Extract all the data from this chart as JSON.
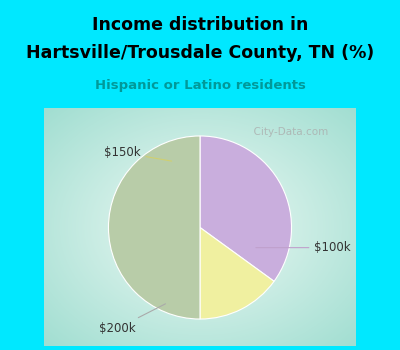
{
  "title_line1": "Income distribution in",
  "title_line2": "Hartsville/Trousdale County, TN (%)",
  "subtitle": "Hispanic or Latino residents",
  "slices": [
    {
      "label": "$100k",
      "value": 35,
      "color": "#c9aedd"
    },
    {
      "label": "$150k",
      "value": 15,
      "color": "#f0f0a0"
    },
    {
      "label": "$200k",
      "value": 50,
      "color": "#b8cca8"
    }
  ],
  "bg_color_top": "#00e8ff",
  "title_color": "#000000",
  "subtitle_color": "#009999",
  "watermark": "City-Data.com",
  "label_color": "#333333",
  "start_angle": 90,
  "chart_bg_outer": "#a8ddc8",
  "chart_bg_inner": "#f0faf6"
}
